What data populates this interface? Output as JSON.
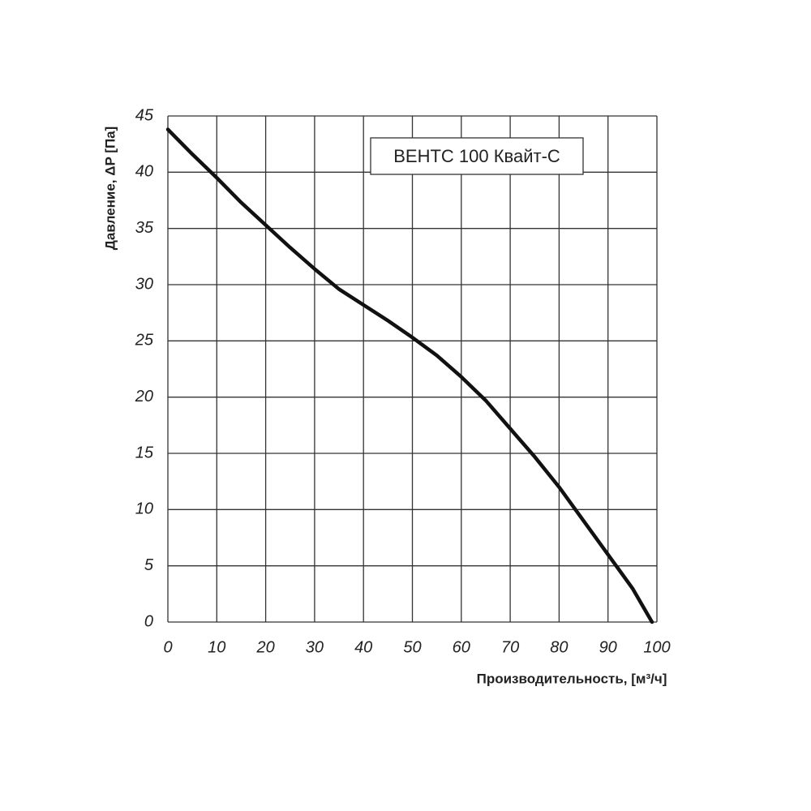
{
  "chart_data": {
    "type": "line",
    "x_label": "Производительность, [м³/ч]",
    "y_label": "Давление, ΔP [Па]",
    "x": [
      0,
      5,
      10,
      15,
      20,
      25,
      30,
      35,
      40,
      45,
      50,
      55,
      60,
      65,
      70,
      75,
      80,
      85,
      90,
      95,
      99
    ],
    "series": [
      {
        "name": "ВЕНТС 100 Квайт-С",
        "color": "#111111",
        "values": [
          43.8,
          41.6,
          39.5,
          37.3,
          35.3,
          33.3,
          31.4,
          29.6,
          28.2,
          26.8,
          25.3,
          23.7,
          21.8,
          19.7,
          17.2,
          14.7,
          12.0,
          9.0,
          6.0,
          3.0,
          0
        ]
      }
    ],
    "xlim": [
      0,
      100
    ],
    "ylim": [
      0,
      45
    ],
    "xticks": [
      0,
      10,
      20,
      30,
      40,
      50,
      60,
      70,
      80,
      90,
      100
    ],
    "yticks": [
      0,
      5,
      10,
      15,
      20,
      25,
      30,
      35,
      40,
      45
    ],
    "grid": true
  }
}
